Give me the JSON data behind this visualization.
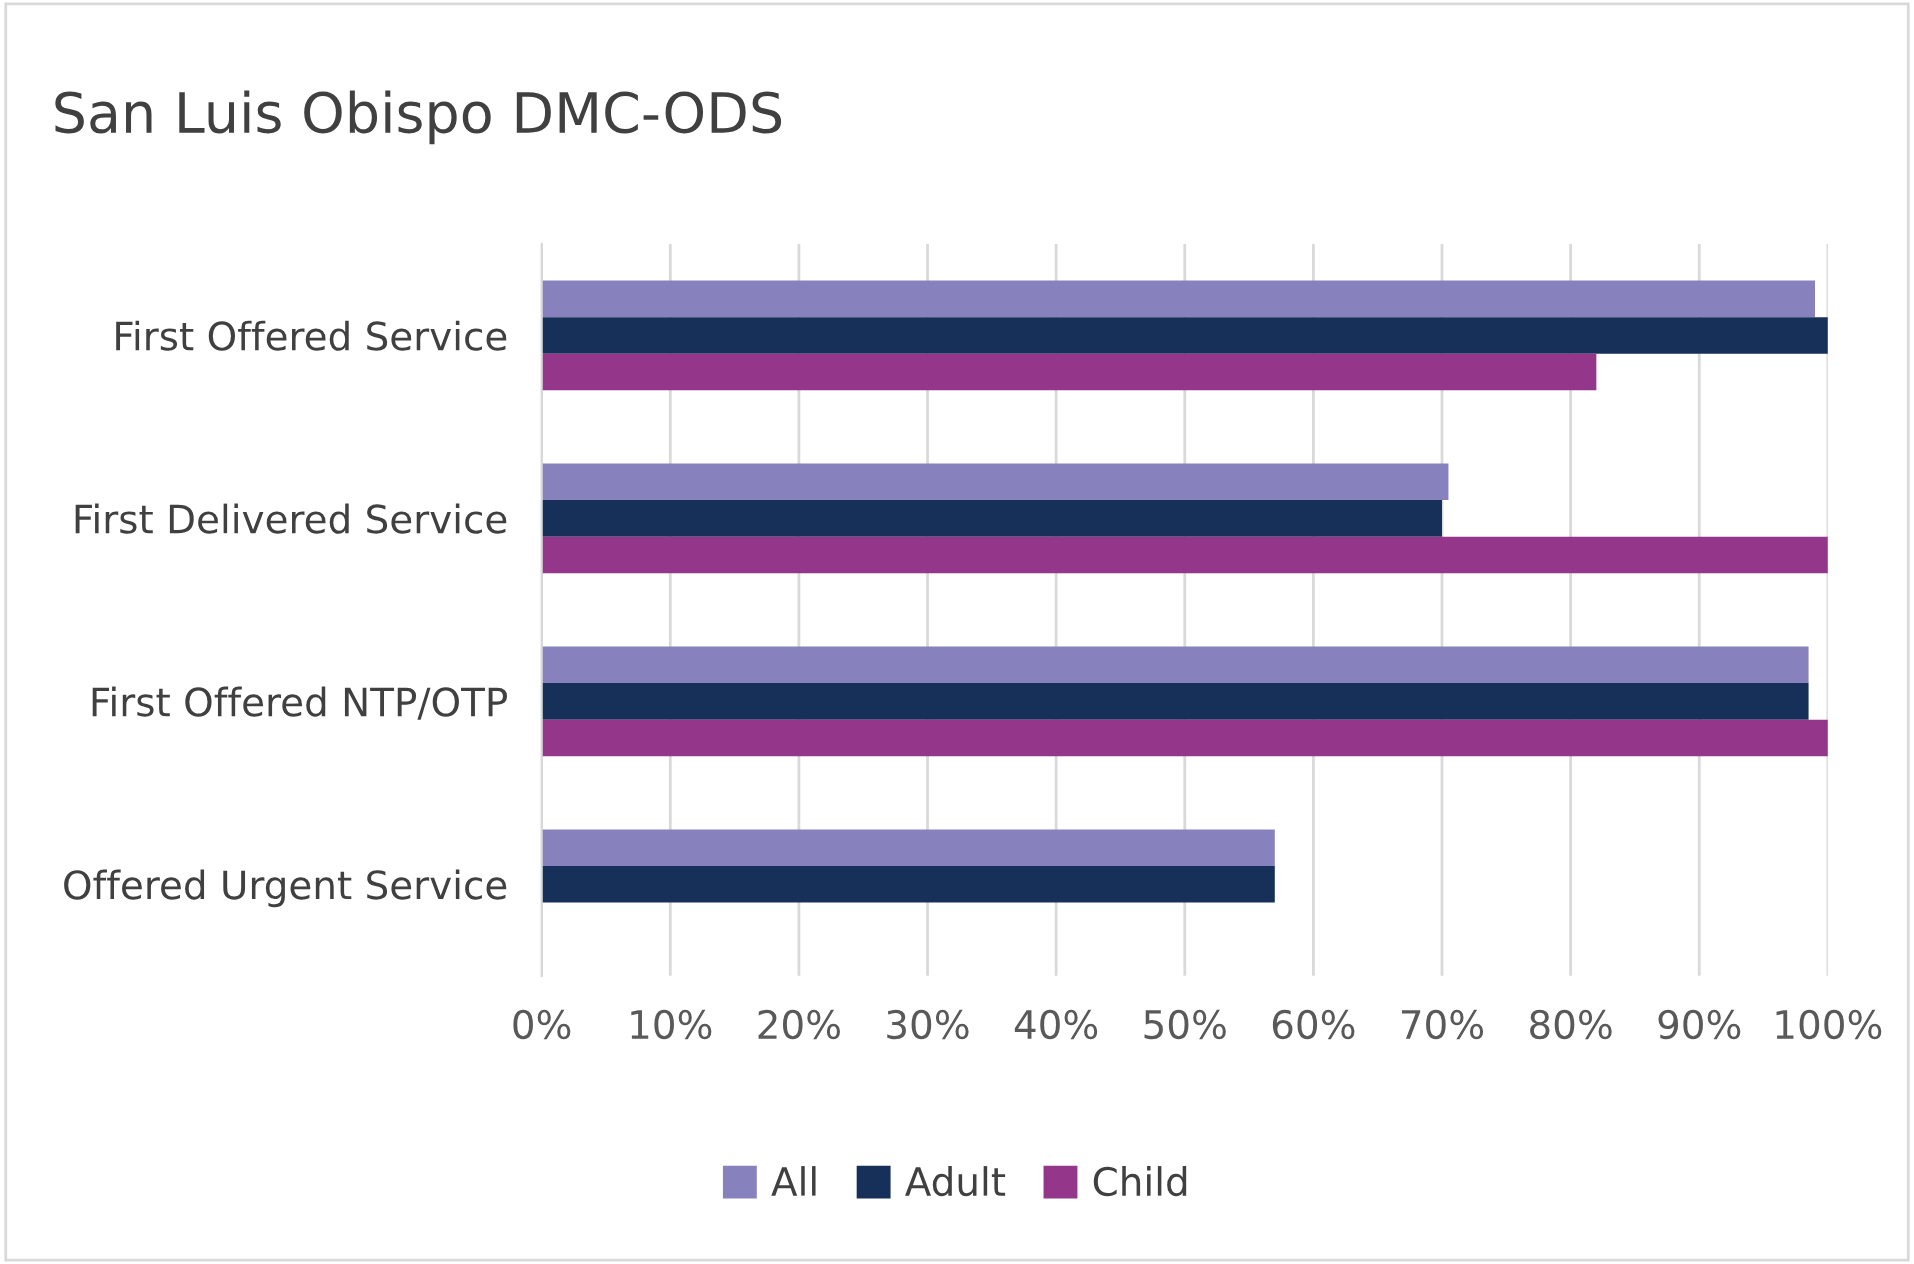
{
  "chart_data": {
    "type": "bar",
    "orientation": "horizontal",
    "title": "San Luis Obispo DMC-ODS",
    "categories": [
      "First Offered Service",
      "First Delivered Service",
      "First Offered NTP/OTP",
      "Offered Urgent Service"
    ],
    "series": [
      {
        "name": "All",
        "color": "#8781bd",
        "values": [
          99,
          70.5,
          98.5,
          57
        ]
      },
      {
        "name": "Adult",
        "color": "#17305a",
        "values": [
          100,
          70,
          98.5,
          57
        ]
      },
      {
        "name": "Child",
        "color": "#94378b",
        "values": [
          82,
          100,
          100,
          null
        ]
      }
    ],
    "xlim": [
      0,
      100
    ],
    "xticks": [
      {
        "value": 0,
        "label": "0%"
      },
      {
        "value": 10,
        "label": "10%"
      },
      {
        "value": 20,
        "label": "20%"
      },
      {
        "value": 30,
        "label": "30%"
      },
      {
        "value": 40,
        "label": "40%"
      },
      {
        "value": 50,
        "label": "50%"
      },
      {
        "value": 60,
        "label": "60%"
      },
      {
        "value": 70,
        "label": "70%"
      },
      {
        "value": 80,
        "label": "80%"
      },
      {
        "value": 90,
        "label": "90%"
      },
      {
        "value": 100,
        "label": "100%"
      }
    ],
    "grid": "x",
    "legend": "bottom"
  }
}
